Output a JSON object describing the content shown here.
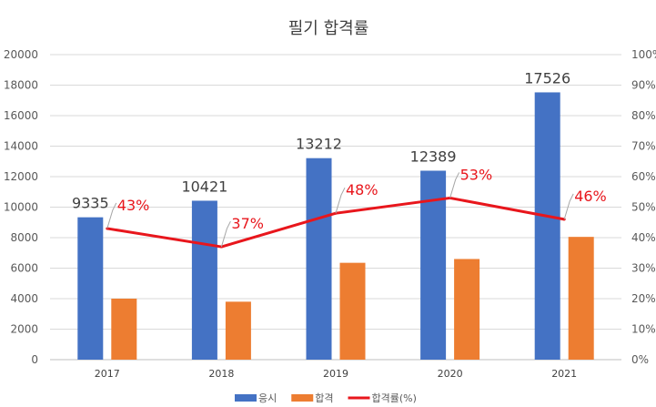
{
  "chart_data": {
    "type": "bar",
    "title": "필기 합격률",
    "categories": [
      "2017",
      "2018",
      "2019",
      "2020",
      "2021"
    ],
    "series": [
      {
        "name": "응시",
        "type": "bar",
        "axis": "left",
        "color": "#4472c4",
        "values": [
          9335,
          10421,
          13212,
          12389,
          17526
        ],
        "labels": [
          "9335",
          "10421",
          "13212",
          "12389",
          "17526"
        ]
      },
      {
        "name": "합격",
        "type": "bar",
        "axis": "left",
        "color": "#ed7d31",
        "values": [
          4000,
          3800,
          6350,
          6600,
          8050
        ]
      },
      {
        "name": "합격률(%)",
        "type": "line",
        "axis": "right",
        "color": "#e8161c",
        "values": [
          43,
          37,
          48,
          53,
          46
        ],
        "labels": [
          "43%",
          "37%",
          "48%",
          "53%",
          "46%"
        ]
      }
    ],
    "y_left": {
      "min": 0,
      "max": 20000,
      "ticks": [
        "0",
        "2000",
        "4000",
        "6000",
        "8000",
        "10000",
        "12000",
        "14000",
        "16000",
        "18000",
        "20000"
      ]
    },
    "y_right": {
      "min": 0,
      "max": 100,
      "ticks": [
        "0%",
        "10%",
        "20%",
        "30%",
        "40%",
        "50%",
        "60%",
        "70%",
        "80%",
        "90%",
        "100%"
      ]
    },
    "grid": true,
    "legend": "bottom"
  }
}
